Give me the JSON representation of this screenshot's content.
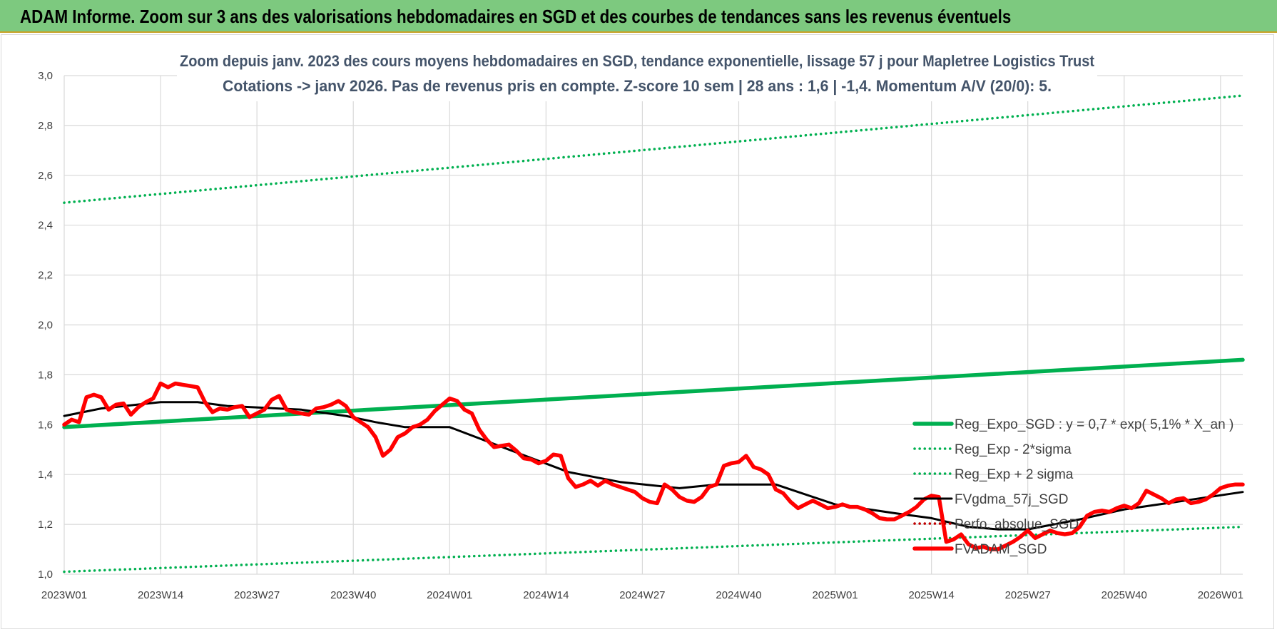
{
  "header": {
    "title": "ADAM Informe. Zoom sur 3 ans des valorisations hebdomadaires en SGD et des courbes de tendances sans les revenus éventuels"
  },
  "colors": {
    "banner": "#7dc97f",
    "trend": "#00b050",
    "price": "#ff0000",
    "moving_average": "#000000",
    "perfo": "#c00000",
    "grid": "#d9d9d9"
  },
  "chart_data": {
    "type": "line",
    "title": "Zoom depuis janv. 2023 des cours moyens hebdomadaires en SGD, tendance exponentielle, lissage 57 j pour Mapletree Logistics Trust",
    "subtitle": "Cotations -> janv 2026. Pas de revenus pris en compte. Z-score 10 sem | 28 ans : 1,6 | -1,4. Momentum A/V (20/0): 5.",
    "xlabel": "",
    "ylabel": "",
    "ylim": [
      1.0,
      3.0
    ],
    "yticks": [
      "1,0",
      "1,2",
      "1,4",
      "1,6",
      "1,8",
      "2,0",
      "2,2",
      "2,4",
      "2,6",
      "2,8",
      "3,0"
    ],
    "xlim": [
      0,
      159
    ],
    "xticks": [
      {
        "week": 0,
        "label": "2023W01"
      },
      {
        "week": 13,
        "label": "2023W14"
      },
      {
        "week": 26,
        "label": "2023W27"
      },
      {
        "week": 39,
        "label": "2023W40"
      },
      {
        "week": 52,
        "label": "2024W01"
      },
      {
        "week": 65,
        "label": "2024W14"
      },
      {
        "week": 78,
        "label": "2024W27"
      },
      {
        "week": 91,
        "label": "2024W40"
      },
      {
        "week": 104,
        "label": "2025W01"
      },
      {
        "week": 117,
        "label": "2025W14"
      },
      {
        "week": 130,
        "label": "2025W27"
      },
      {
        "week": 143,
        "label": "2025W40"
      },
      {
        "week": 156,
        "label": "2026W01"
      }
    ],
    "grid": true,
    "legend_position": "bottom-right",
    "series": [
      {
        "name": "Reg_Expo_SGD : y = 0,7 * exp( 5,1% * X_an )",
        "style": "solid-thick",
        "color": "#00b050",
        "x": [
          0,
          159
        ],
        "values": [
          1.59,
          1.86
        ]
      },
      {
        "name": "Reg_Exp - 2*sigma",
        "style": "dotted",
        "color": "#00b050",
        "x": [
          0,
          159
        ],
        "values": [
          1.01,
          1.19
        ]
      },
      {
        "name": "Reg_Exp + 2 sigma",
        "style": "dotted",
        "color": "#00b050",
        "x": [
          0,
          159
        ],
        "values": [
          2.49,
          2.92
        ]
      },
      {
        "name": "FVgdma_57j_SGD",
        "style": "solid",
        "color": "#000000",
        "x": [
          0,
          5,
          13,
          18,
          22,
          32,
          38,
          42,
          46,
          52,
          60,
          68,
          75,
          83,
          88,
          96,
          104,
          112,
          117,
          122,
          126,
          130,
          137,
          143,
          150,
          159
        ],
        "values": [
          1.635,
          1.665,
          1.69,
          1.69,
          1.675,
          1.66,
          1.635,
          1.61,
          1.59,
          1.59,
          1.5,
          1.41,
          1.37,
          1.345,
          1.36,
          1.36,
          1.28,
          1.245,
          1.225,
          1.19,
          1.18,
          1.18,
          1.22,
          1.26,
          1.29,
          1.33
        ]
      },
      {
        "name": "Perfo. absolue_SGD",
        "style": "dotted",
        "color": "#c00000",
        "x": [],
        "values": []
      },
      {
        "name": "FVADAM_SGD",
        "style": "solid-thick",
        "color": "#ff0000",
        "x": [
          0,
          1,
          2,
          3,
          4,
          5,
          6,
          7,
          8,
          9,
          10,
          11,
          12,
          13,
          14,
          15,
          16,
          17,
          18,
          19,
          20,
          21,
          22,
          23,
          24,
          25,
          26,
          27,
          28,
          29,
          30,
          31,
          32,
          33,
          34,
          35,
          36,
          37,
          38,
          39,
          40,
          41,
          42,
          43,
          44,
          45,
          46,
          47,
          48,
          49,
          50,
          51,
          52,
          53,
          54,
          55,
          56,
          57,
          58,
          59,
          60,
          61,
          62,
          63,
          64,
          65,
          66,
          67,
          68,
          69,
          70,
          71,
          72,
          73,
          74,
          75,
          76,
          77,
          78,
          79,
          80,
          81,
          82,
          83,
          84,
          85,
          86,
          87,
          88,
          89,
          90,
          91,
          92,
          93,
          94,
          95,
          96,
          97,
          98,
          99,
          100,
          101,
          102,
          103,
          104,
          105,
          106,
          107,
          108,
          109,
          110,
          111,
          112,
          113,
          114,
          115,
          116,
          117,
          118,
          119,
          120,
          121,
          122,
          123,
          124,
          125,
          126,
          127,
          128,
          129,
          130,
          131,
          132,
          133,
          134,
          135,
          136,
          137,
          138,
          139,
          140,
          141,
          142,
          143,
          144,
          145,
          146,
          147,
          148,
          149,
          150,
          151,
          152,
          153,
          154,
          155,
          156,
          157,
          158,
          159
        ],
        "values": [
          1.6,
          1.62,
          1.61,
          1.71,
          1.72,
          1.71,
          1.66,
          1.68,
          1.685,
          1.64,
          1.67,
          1.69,
          1.705,
          1.765,
          1.75,
          1.765,
          1.76,
          1.755,
          1.75,
          1.69,
          1.65,
          1.665,
          1.66,
          1.67,
          1.675,
          1.63,
          1.645,
          1.66,
          1.7,
          1.715,
          1.66,
          1.65,
          1.645,
          1.64,
          1.665,
          1.67,
          1.68,
          1.695,
          1.675,
          1.63,
          1.61,
          1.59,
          1.55,
          1.475,
          1.5,
          1.55,
          1.565,
          1.59,
          1.6,
          1.62,
          1.655,
          1.68,
          1.705,
          1.695,
          1.66,
          1.645,
          1.58,
          1.54,
          1.51,
          1.515,
          1.52,
          1.495,
          1.465,
          1.46,
          1.445,
          1.455,
          1.48,
          1.475,
          1.385,
          1.35,
          1.36,
          1.375,
          1.355,
          1.375,
          1.36,
          1.35,
          1.34,
          1.33,
          1.305,
          1.29,
          1.285,
          1.36,
          1.34,
          1.31,
          1.295,
          1.29,
          1.31,
          1.35,
          1.36,
          1.435,
          1.445,
          1.45,
          1.475,
          1.43,
          1.42,
          1.4,
          1.34,
          1.325,
          1.29,
          1.265,
          1.28,
          1.295,
          1.28,
          1.265,
          1.27,
          1.28,
          1.27,
          1.27,
          1.26,
          1.245,
          1.225,
          1.22,
          1.22,
          1.235,
          1.25,
          1.27,
          1.3,
          1.315,
          1.31,
          1.13,
          1.14,
          1.16,
          1.12,
          1.105,
          1.11,
          1.1,
          1.1,
          1.115,
          1.13,
          1.15,
          1.175,
          1.145,
          1.16,
          1.175,
          1.165,
          1.16,
          1.165,
          1.19,
          1.235,
          1.25,
          1.255,
          1.25,
          1.265,
          1.275,
          1.265,
          1.285,
          1.335,
          1.32,
          1.305,
          1.285,
          1.3,
          1.305,
          1.285,
          1.29,
          1.3,
          1.32,
          1.345,
          1.355,
          1.36,
          1.36
        ]
      }
    ]
  }
}
